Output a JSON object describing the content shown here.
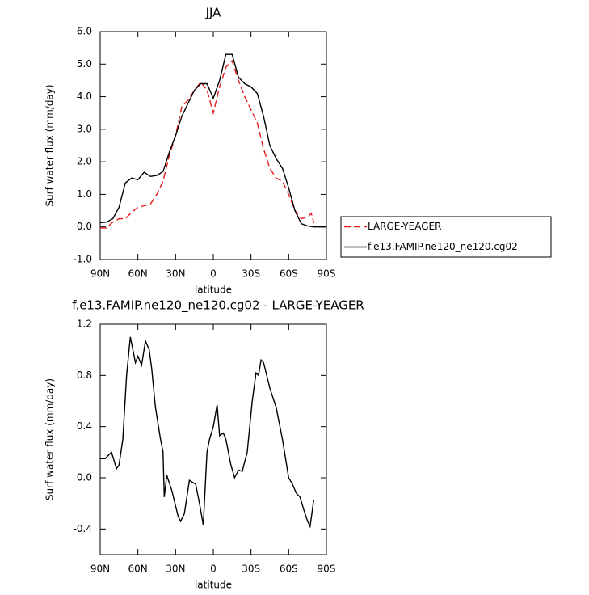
{
  "chart_data": [
    {
      "type": "line",
      "title": "JJA",
      "xlabel": "latitude",
      "ylabel": "Surf water flux (mm/day)",
      "xlim": [
        90,
        -90
      ],
      "xticks": [
        {
          "value": 90,
          "label": "90N"
        },
        {
          "value": 60,
          "label": "60N"
        },
        {
          "value": 30,
          "label": "30N"
        },
        0,
        {
          "value": -30,
          "label": "30S"
        },
        {
          "value": -60,
          "label": "60S"
        },
        {
          "value": -90,
          "label": "90S"
        }
      ],
      "ylim": [
        -1,
        6
      ],
      "yticks": [
        {
          "value": 6,
          "label": "6.0"
        },
        {
          "value": 5,
          "label": "5.0"
        },
        {
          "value": 4,
          "label": "4.0"
        },
        {
          "value": 3,
          "label": "3.0"
        },
        {
          "value": 2,
          "label": "2.0"
        },
        {
          "value": 1,
          "label": "1.0"
        },
        {
          "value": 0,
          "label": "0.0"
        },
        {
          "value": -1,
          "label": "-1.0"
        }
      ],
      "legend": "right",
      "series": [
        {
          "name": "LARGE-YEAGER",
          "color": "#e41a1c",
          "dashed": true,
          "x": [
            90,
            85,
            80,
            75,
            70,
            65,
            60,
            55,
            50,
            45,
            40,
            35,
            30,
            25,
            20,
            15,
            10,
            5,
            0,
            -5,
            -10,
            -15,
            -20,
            -25,
            -30,
            -35,
            -40,
            -45,
            -50,
            -55,
            -60,
            -65,
            -70,
            -75,
            -78,
            -80
          ],
          "values": [
            -0.03,
            -0.03,
            0.15,
            0.25,
            0.25,
            0.45,
            0.6,
            0.65,
            0.7,
            1.0,
            1.4,
            2.2,
            2.8,
            3.7,
            3.9,
            4.2,
            4.45,
            4.2,
            3.5,
            4.3,
            4.9,
            5.1,
            4.5,
            4.0,
            3.6,
            3.2,
            2.4,
            1.8,
            1.5,
            1.4,
            1.0,
            0.5,
            0.25,
            0.3,
            0.42,
            0.12
          ]
        },
        {
          "name": "f.e13.FAMIP.ne120_ne120.cg02",
          "color": "#000000",
          "dashed": false,
          "x": [
            90,
            85,
            80,
            75,
            70,
            65,
            60,
            55,
            50,
            45,
            40,
            35,
            30,
            25,
            20,
            15,
            10,
            5,
            0,
            -5,
            -10,
            -15,
            -20,
            -25,
            -30,
            -35,
            -40,
            -45,
            -50,
            -55,
            -60,
            -65,
            -70,
            -75,
            -80,
            -85,
            -90
          ],
          "values": [
            0.13,
            0.15,
            0.25,
            0.6,
            1.35,
            1.5,
            1.45,
            1.68,
            1.55,
            1.58,
            1.7,
            2.3,
            2.8,
            3.4,
            3.8,
            4.2,
            4.4,
            4.4,
            3.95,
            4.5,
            5.3,
            5.3,
            4.6,
            4.4,
            4.3,
            4.1,
            3.4,
            2.5,
            2.1,
            1.8,
            1.2,
            0.5,
            0.1,
            0.03,
            0.0,
            0.0,
            0.0
          ]
        }
      ]
    },
    {
      "type": "line",
      "title": "f.e13.FAMIP.ne120_ne120.cg02 - LARGE-YEAGER",
      "xlabel": "latitude",
      "ylabel": "Surf water flux (mm/day)",
      "xlim": [
        90,
        -90
      ],
      "xticks": [
        {
          "value": 90,
          "label": "90N"
        },
        {
          "value": 60,
          "label": "60N"
        },
        {
          "value": 30,
          "label": "30N"
        },
        0,
        {
          "value": -30,
          "label": "30S"
        },
        {
          "value": -60,
          "label": "60S"
        },
        {
          "value": -90,
          "label": "90S"
        }
      ],
      "ylim": [
        -0.6,
        1.2
      ],
      "yticks": [
        1.2,
        0.8,
        0.4,
        {
          "value": 0,
          "label": "0.0"
        },
        -0.4
      ],
      "series": [
        {
          "color": "#000000",
          "dashed": false,
          "x": [
            90,
            86,
            81,
            77,
            75,
            72,
            69,
            66,
            62,
            60,
            57,
            54,
            51,
            49,
            46,
            42,
            40,
            39,
            37,
            33,
            28,
            26,
            23,
            19,
            14,
            11,
            8,
            5,
            3,
            0,
            -3,
            -5,
            -8,
            -10,
            -14,
            -17,
            -20,
            -23,
            -27,
            -31,
            -34,
            -36,
            -38,
            -40,
            -45,
            -50,
            -55,
            -60,
            -63,
            -66,
            -69,
            -72,
            -75,
            -77,
            -80
          ],
          "values": [
            0.15,
            0.15,
            0.2,
            0.07,
            0.1,
            0.3,
            0.8,
            1.1,
            0.9,
            0.95,
            0.88,
            1.07,
            1.0,
            0.85,
            0.55,
            0.3,
            0.2,
            -0.15,
            0.02,
            -0.1,
            -0.3,
            -0.34,
            -0.28,
            -0.02,
            -0.05,
            -0.2,
            -0.37,
            0.2,
            0.3,
            0.4,
            0.57,
            0.33,
            0.35,
            0.3,
            0.1,
            0.0,
            0.06,
            0.05,
            0.2,
            0.6,
            0.82,
            0.8,
            0.92,
            0.9,
            0.7,
            0.55,
            0.3,
            0.0,
            -0.05,
            -0.12,
            -0.15,
            -0.25,
            -0.34,
            -0.38,
            -0.17
          ]
        }
      ]
    }
  ]
}
